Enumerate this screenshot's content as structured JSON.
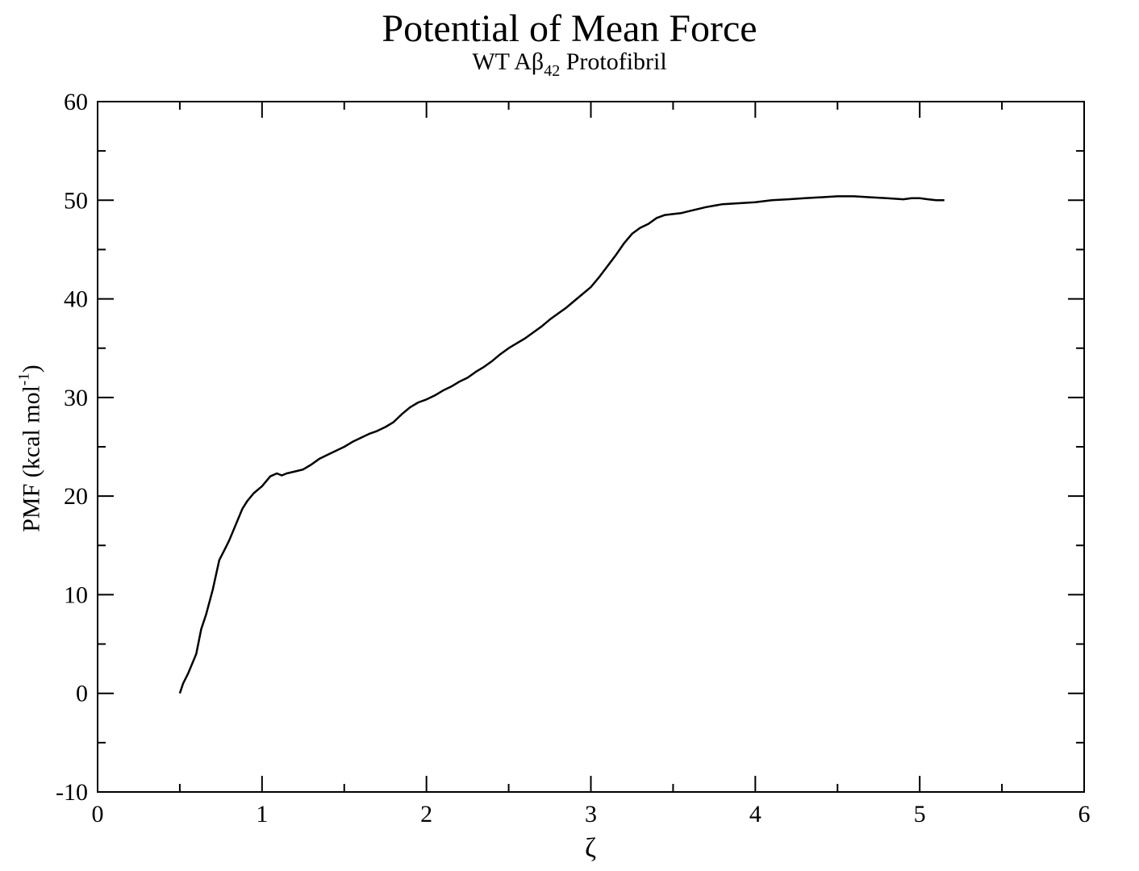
{
  "chart_data": {
    "type": "line",
    "title": "Potential of Mean Force",
    "subtitle": {
      "prefix": "WT Aβ",
      "subscript": "42",
      "suffix": " Protofibril"
    },
    "xlabel": "ζ",
    "ylabel": {
      "text": "PMF (kcal mol",
      "superscript": "-1",
      "suffix": ")"
    },
    "xlim": [
      0,
      6
    ],
    "ylim": [
      -10,
      60
    ],
    "xticks": [
      0,
      1,
      2,
      3,
      4,
      5,
      6
    ],
    "yticks": [
      -10,
      0,
      10,
      20,
      30,
      40,
      50,
      60
    ],
    "grid": false,
    "legend": "none",
    "line_color": "#000000",
    "series": [
      {
        "x": [
          0.5,
          0.52,
          0.55,
          0.6,
          0.63,
          0.66,
          0.7,
          0.74,
          0.77,
          0.8,
          0.85,
          0.88,
          0.91,
          0.95,
          1.0,
          1.05,
          1.09,
          1.12,
          1.15,
          1.2,
          1.25,
          1.3,
          1.35,
          1.4,
          1.45,
          1.5,
          1.55,
          1.6,
          1.65,
          1.7,
          1.75,
          1.8,
          1.85,
          1.9,
          1.95,
          2.0,
          2.05,
          2.1,
          2.15,
          2.2,
          2.25,
          2.3,
          2.35,
          2.4,
          2.45,
          2.5,
          2.55,
          2.6,
          2.65,
          2.7,
          2.75,
          2.8,
          2.85,
          2.9,
          2.95,
          3.0,
          3.05,
          3.1,
          3.15,
          3.2,
          3.25,
          3.3,
          3.35,
          3.4,
          3.45,
          3.5,
          3.55,
          3.6,
          3.7,
          3.8,
          3.9,
          4.0,
          4.1,
          4.2,
          4.3,
          4.4,
          4.5,
          4.6,
          4.7,
          4.8,
          4.9,
          4.95,
          5.0,
          5.05,
          5.1,
          5.15
        ],
        "y": [
          0.0,
          1.0,
          2.0,
          4.0,
          6.5,
          8.0,
          10.5,
          13.5,
          14.5,
          15.5,
          17.5,
          18.7,
          19.5,
          20.3,
          21.0,
          22.0,
          22.3,
          22.1,
          22.3,
          22.5,
          22.7,
          23.2,
          23.8,
          24.2,
          24.6,
          25.0,
          25.5,
          25.9,
          26.3,
          26.6,
          27.0,
          27.5,
          28.3,
          29.0,
          29.5,
          29.8,
          30.2,
          30.7,
          31.1,
          31.6,
          32.0,
          32.6,
          33.1,
          33.7,
          34.4,
          35.0,
          35.5,
          36.0,
          36.6,
          37.2,
          37.9,
          38.5,
          39.1,
          39.8,
          40.5,
          41.2,
          42.2,
          43.3,
          44.4,
          45.6,
          46.6,
          47.2,
          47.6,
          48.2,
          48.5,
          48.6,
          48.7,
          48.9,
          49.3,
          49.6,
          49.7,
          49.8,
          50.0,
          50.1,
          50.2,
          50.3,
          50.4,
          50.4,
          50.3,
          50.2,
          50.1,
          50.2,
          50.2,
          50.1,
          50.0,
          50.0
        ]
      }
    ]
  }
}
